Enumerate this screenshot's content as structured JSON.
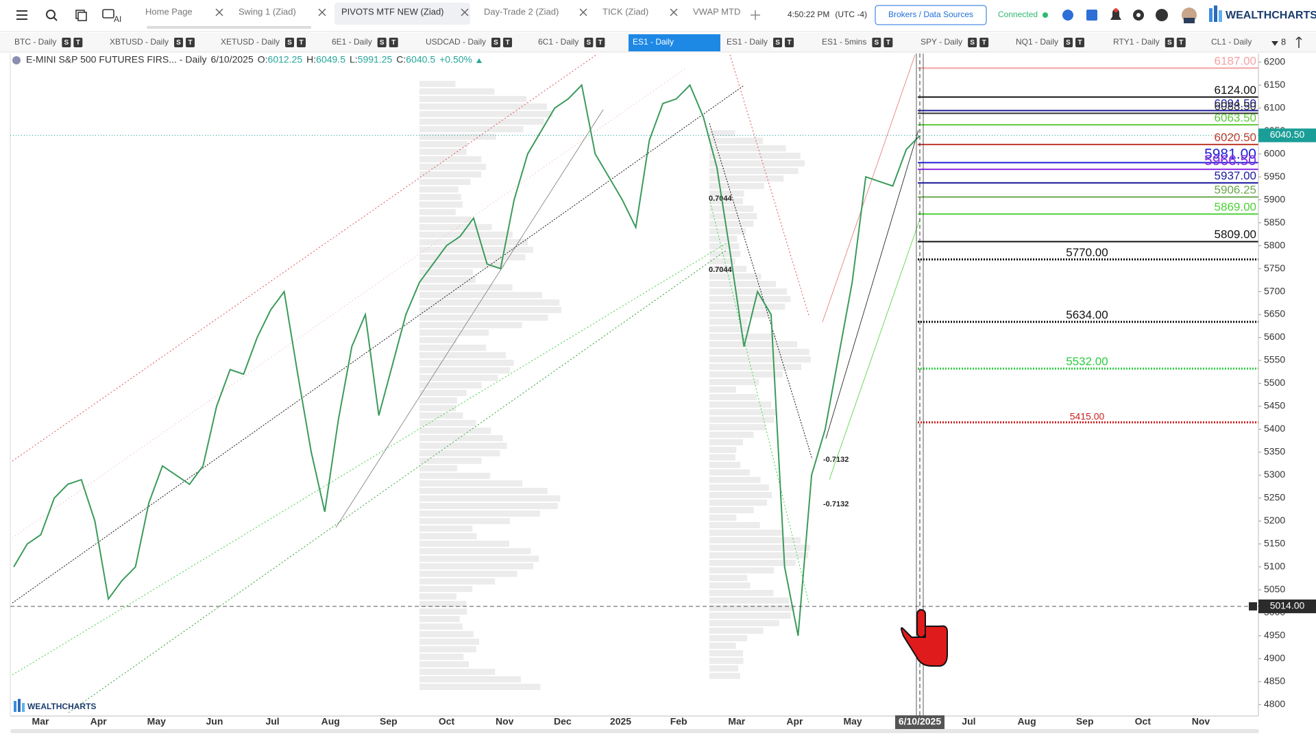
{
  "top_bar": {
    "ai_label": "AI",
    "tabs": [
      "Home Page",
      "Swing 1 (Ziad)",
      "PIVOTS MTF NEW (Ziad)",
      "Day-Trade 2 (Ziad)",
      "TICK (Ziad)",
      "VWAP MTD"
    ],
    "active_tab": 2,
    "time": "4:50:22 PM",
    "timezone": "(UTC -4)",
    "broker_button": "Brokers / Data Sources",
    "status": "Connected",
    "brand": "WEALTHCHARTS"
  },
  "symbol_tabs": {
    "tabs": [
      "BTC - Daily",
      "XBTUSD - Daily",
      "XETUSD - Daily",
      "6E1 - Daily",
      "USDCAD - Daily",
      "6C1 - Daily",
      "ES1 - Daily",
      "ES1 - Daily",
      "ES1 - 5mins",
      "SPY - Daily",
      "NQ1 - Daily",
      "RTY1 - Daily",
      "CL1 - Daily"
    ],
    "active_tab": 6,
    "badges": [
      "S",
      "T"
    ],
    "overflow_count": 8
  },
  "chart_data": {
    "type": "line",
    "title": "E-MINI S&P 500 FUTURES FIRS... - Daily",
    "date": "6/10/2025",
    "ohlc": [
      {
        "label": "O:",
        "value": 6012.25
      },
      {
        "label": "H:",
        "value": 6049.5
      },
      {
        "label": "L:",
        "value": 5991.25
      },
      {
        "label": "C:",
        "value": 6040.5
      }
    ],
    "change": "+0.50%",
    "color": "#3a9a5a",
    "x_axis_labels": [
      "Mar",
      "Apr",
      "May",
      "Jun",
      "Jul",
      "Aug",
      "Sep",
      "Oct",
      "Nov",
      "Dec",
      "2025",
      "Feb",
      "Mar",
      "Apr",
      "May",
      "6/10/2025",
      "Jul",
      "Aug",
      "Sep",
      "Oct",
      "Nov"
    ],
    "highlighted_x_label": 15,
    "values": [
      5100,
      5150,
      5170,
      5250,
      5280,
      5290,
      5200,
      5030,
      5070,
      5100,
      5240,
      5320,
      5300,
      5280,
      5320,
      5450,
      5530,
      5520,
      5600,
      5660,
      5700,
      5520,
      5350,
      5220,
      5420,
      5580,
      5650,
      5430,
      5540,
      5650,
      5720,
      5760,
      5800,
      5820,
      5860,
      5760,
      5750,
      5900,
      6000,
      6050,
      6100,
      6120,
      6150,
      6000,
      5950,
      5900,
      5840,
      6030,
      6110,
      6120,
      6150,
      6080,
      5970,
      5780,
      5580,
      5700,
      5650,
      5100,
      4950,
      5300,
      5400,
      5560,
      5720,
      5950,
      5940,
      5930,
      6010,
      6040
    ],
    "ylim": [
      4775,
      6219
    ],
    "yticks": [
      4800,
      4850,
      4900,
      4950,
      5000,
      5050,
      5100,
      5150,
      5200,
      5250,
      5300,
      5350,
      5400,
      5450,
      5500,
      5550,
      5600,
      5650,
      5700,
      5750,
      5800,
      5850,
      5900,
      5950,
      6000,
      6050,
      6100,
      6150,
      6200
    ],
    "grid": false,
    "levels": [
      {
        "value": 6187,
        "label": "6187.00",
        "color": "#f2a3a3",
        "style": "solid",
        "size": "normal",
        "align": "right"
      },
      {
        "value": 6124,
        "label": "6124.00",
        "color": "#111111",
        "style": "solid",
        "size": "normal",
        "align": "right"
      },
      {
        "value": 6094.5,
        "label": "6094.50",
        "color": "#1a1a9c",
        "style": "solid",
        "size": "normal",
        "align": "right"
      },
      {
        "value": 6088.5,
        "label": "6088.50",
        "color": "#333333",
        "style": "solid",
        "size": "normal",
        "align": "right"
      },
      {
        "value": 6063.5,
        "label": "6063.50",
        "color": "#5cc93a",
        "style": "solid",
        "size": "normal",
        "align": "right"
      },
      {
        "value": 6020.5,
        "label": "6020.50",
        "color": "#c0392b",
        "style": "solid",
        "size": "normal",
        "align": "right"
      },
      {
        "value": 5981,
        "label": "5981.00",
        "color": "#1f1fd6",
        "style": "solid",
        "size": "large",
        "align": "right"
      },
      {
        "value": 5966.5,
        "label": "5966.50",
        "color": "#8a2be2",
        "style": "solid",
        "size": "large",
        "align": "right"
      },
      {
        "value": 5937,
        "label": "5937.00",
        "color": "#1a1a9c",
        "style": "solid",
        "size": "normal",
        "align": "right"
      },
      {
        "value": 5906.25,
        "label": "5906.25",
        "color": "#6aa84f",
        "style": "solid",
        "size": "normal",
        "align": "right"
      },
      {
        "value": 5869,
        "label": "5869.00",
        "color": "#4cd137",
        "style": "solid",
        "size": "normal",
        "align": "right"
      },
      {
        "value": 5809,
        "label": "5809.00",
        "color": "#111111",
        "style": "solid",
        "size": "normal",
        "align": "right"
      },
      {
        "value": 5770,
        "label": "5770.00",
        "color": "#111111",
        "style": "dotted",
        "size": "normal",
        "align": "center"
      },
      {
        "value": 5634,
        "label": "5634.00",
        "color": "#111111",
        "style": "dotted",
        "size": "normal",
        "align": "center"
      },
      {
        "value": 5532,
        "label": "5532.00",
        "color": "#2ecc40",
        "style": "dotted",
        "size": "normal",
        "align": "center"
      },
      {
        "value": 5415,
        "label": "5415.00",
        "color": "#cc1f1f",
        "style": "dotted",
        "size": "small",
        "align": "center"
      }
    ],
    "last_price": {
      "value": 6040.5,
      "label": "6040.50"
    },
    "crosshair_price": {
      "value": 5014,
      "label": "5014.00"
    },
    "annotations": [
      "0.7044",
      "0.7044",
      "-0.7132",
      "-0.7132"
    ]
  }
}
